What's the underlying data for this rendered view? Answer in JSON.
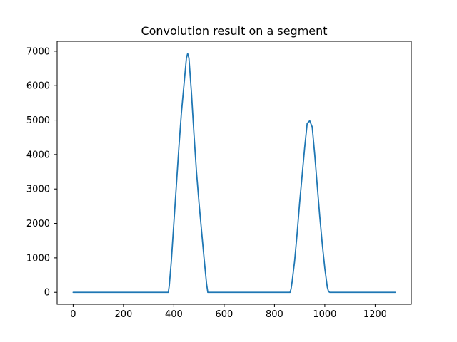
{
  "chart_data": {
    "type": "line",
    "title": "Convolution result on a segment",
    "xlabel": "",
    "ylabel": "",
    "xlim": [
      -63.5,
      1343.5
    ],
    "ylim": [
      -347,
      7287
    ],
    "xticks": [
      0,
      200,
      400,
      600,
      800,
      1000,
      1200
    ],
    "yticks": [
      0,
      1000,
      2000,
      3000,
      4000,
      5000,
      6000,
      7000
    ],
    "grid": false,
    "legend": "none",
    "series": [
      {
        "color": "#1f77b4",
        "x": [
          0,
          100,
          200,
          300,
          378,
          382,
          390,
          400,
          410,
          420,
          430,
          440,
          450,
          455,
          460,
          470,
          480,
          490,
          500,
          510,
          520,
          530,
          535,
          540,
          600,
          700,
          800,
          862,
          866,
          870,
          880,
          890,
          900,
          910,
          920,
          930,
          940,
          950,
          960,
          970,
          980,
          990,
          1000,
          1010,
          1015,
          1020,
          1100,
          1200,
          1280
        ],
        "y": [
          0,
          0,
          0,
          0,
          0,
          200,
          900,
          2000,
          3100,
          4200,
          5200,
          6000,
          6800,
          6930,
          6800,
          5800,
          4600,
          3500,
          2600,
          1800,
          1000,
          250,
          0,
          0,
          0,
          0,
          0,
          0,
          100,
          300,
          900,
          1700,
          2600,
          3400,
          4200,
          4900,
          4980,
          4800,
          4000,
          3100,
          2200,
          1400,
          700,
          150,
          20,
          0,
          0,
          0,
          0
        ]
      }
    ]
  }
}
